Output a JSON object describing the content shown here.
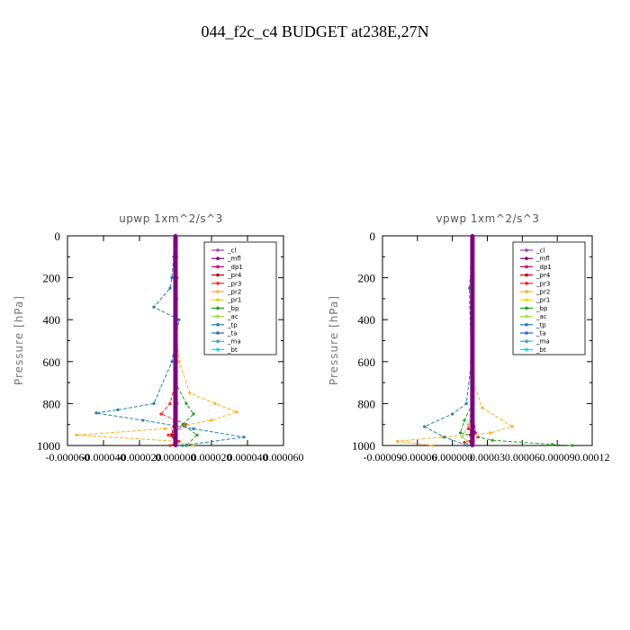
{
  "title": "044_f2c_c4  BUDGET at238E,27N",
  "chart_data": [
    {
      "type": "line",
      "title": "upwp   1xm^2/s^3",
      "ylabel": "Pressure [hPa]",
      "xlim": [
        -6e-05,
        6e-05
      ],
      "ylim": [
        1000,
        0
      ],
      "yticks": [
        0,
        200,
        400,
        600,
        800,
        1000
      ],
      "xtick_labels": [
        "-0.000060",
        "-0.000040",
        "-0.000020",
        "0.000000",
        "0.000020",
        "0.000040",
        "0.000060"
      ],
      "legend": {
        "position": "top-right"
      },
      "series": [
        {
          "name": "_cl",
          "color": "#a040c0",
          "x": [
            0,
            0,
            0
          ],
          "y": [
            0,
            500,
            1000
          ]
        },
        {
          "name": "_mfl",
          "color": "#800080",
          "x": [
            0,
            0,
            0
          ],
          "y": [
            0,
            500,
            1000
          ]
        },
        {
          "name": "_dp1",
          "color": "#d00060",
          "x": [
            0,
            0,
            0,
            0
          ],
          "y": [
            0,
            500,
            900,
            1000
          ]
        },
        {
          "name": "_pr4",
          "color": "#c00000",
          "x": [
            0,
            0,
            0,
            -2e-06,
            0
          ],
          "y": [
            0,
            500,
            800,
            950,
            1000
          ]
        },
        {
          "name": "_pr3",
          "color": "#ff2020",
          "x": [
            0,
            0,
            -3e-06,
            -8e-06,
            6e-06,
            -4e-06,
            2e-06,
            -3e-06
          ],
          "y": [
            0,
            700,
            800,
            850,
            900,
            950,
            980,
            1000
          ]
        },
        {
          "name": "_pr2",
          "color": "#ffb020",
          "x": [
            0,
            1e-06,
            0,
            1e-06,
            0,
            2e-06,
            8e-06,
            2.2e-05,
            3.4e-05,
            2e-05,
            -6e-06,
            -5.5e-05,
            0,
            1e-05
          ],
          "y": [
            0,
            100,
            200,
            300,
            400,
            600,
            750,
            800,
            840,
            880,
            920,
            950,
            980,
            1000
          ]
        },
        {
          "name": "_pr1",
          "color": "#e0e000",
          "x": [
            0,
            0,
            0,
            0
          ],
          "y": [
            0,
            500,
            900,
            1000
          ]
        },
        {
          "name": "_bp",
          "color": "#20a020",
          "x": [
            0,
            0,
            6e-06,
            1e-05,
            4e-06,
            1.2e-05,
            6e-06
          ],
          "y": [
            0,
            700,
            800,
            850,
            900,
            950,
            1000
          ]
        },
        {
          "name": "_ac",
          "color": "#a0e040",
          "x": [
            0,
            0,
            0
          ],
          "y": [
            0,
            500,
            1000
          ]
        },
        {
          "name": "_tp",
          "color": "#2080b0",
          "x": [
            0,
            -1e-06,
            -2e-06,
            -3e-06,
            -1.2e-05,
            2e-06,
            -2e-06,
            -1.2e-05,
            -3.2e-05,
            -4.4e-05,
            -1.8e-05,
            1e-05,
            3.8e-05,
            4e-06
          ],
          "y": [
            0,
            100,
            200,
            250,
            340,
            400,
            600,
            800,
            830,
            845,
            880,
            920,
            960,
            1000
          ]
        },
        {
          "name": "_ta",
          "color": "#3060c0",
          "x": [
            0,
            0,
            0
          ],
          "y": [
            0,
            500,
            1000
          ]
        },
        {
          "name": "_ma",
          "color": "#40a0d0",
          "x": [
            0,
            1e-06,
            0,
            1e-06,
            0
          ],
          "y": [
            0,
            200,
            500,
            800,
            1000
          ]
        },
        {
          "name": "_bt",
          "color": "#00e0e0",
          "x": [
            0,
            0,
            0
          ],
          "y": [
            0,
            500,
            1000
          ]
        }
      ]
    },
    {
      "type": "line",
      "title": "vpwp   1xm^2/s^3",
      "ylabel": "Pressure [hPa]",
      "xlim": [
        -9e-05,
        0.00012
      ],
      "ylim": [
        1000,
        0
      ],
      "yticks": [
        0,
        200,
        400,
        600,
        800,
        1000
      ],
      "xtick_labels": [
        "-0.00009",
        "-0.00006",
        "0.000000",
        "0.00003",
        "0.00006",
        "0.00009",
        "0.00012"
      ],
      "legend": {
        "position": "top-right"
      },
      "series": [
        {
          "name": "_cl",
          "color": "#a040c0",
          "x": [
            0,
            0,
            0
          ],
          "y": [
            0,
            500,
            1000
          ]
        },
        {
          "name": "_mfl",
          "color": "#800080",
          "x": [
            0,
            0,
            0,
            0
          ],
          "y": [
            0,
            500,
            900,
            1000
          ]
        },
        {
          "name": "_dp1",
          "color": "#d00060",
          "x": [
            0,
            0,
            3e-06,
            -2e-06,
            0
          ],
          "y": [
            0,
            800,
            940,
            980,
            1000
          ]
        },
        {
          "name": "_pr4",
          "color": "#c00000",
          "x": [
            0,
            0,
            -2e-06,
            0
          ],
          "y": [
            0,
            800,
            950,
            1000
          ]
        },
        {
          "name": "_pr3",
          "color": "#ff2020",
          "x": [
            0,
            0,
            -4e-06,
            6e-06,
            -8e-06,
            0
          ],
          "y": [
            0,
            850,
            920,
            960,
            985,
            1000
          ]
        },
        {
          "name": "_pr2",
          "color": "#ffb020",
          "x": [
            0,
            1e-06,
            0,
            1e-06,
            1e-05,
            4e-05,
            1.8e-05,
            -3e-05,
            -7.5e-05,
            -4e-05
          ],
          "y": [
            0,
            200,
            500,
            700,
            820,
            910,
            940,
            960,
            980,
            1000
          ]
        },
        {
          "name": "_pr1",
          "color": "#e0e000",
          "x": [
            0,
            0,
            0
          ],
          "y": [
            0,
            500,
            1000
          ]
        },
        {
          "name": "_bp",
          "color": "#20a020",
          "x": [
            0,
            0,
            -8e-06,
            -1.2e-05,
            2e-05,
            8e-05,
            0.0001
          ],
          "y": [
            0,
            800,
            880,
            940,
            975,
            995,
            1000
          ]
        },
        {
          "name": "_ac",
          "color": "#a0e040",
          "x": [
            0,
            0,
            -4e-06,
            -1e-05,
            0
          ],
          "y": [
            0,
            800,
            900,
            960,
            1000
          ]
        },
        {
          "name": "_tp",
          "color": "#2080b0",
          "x": [
            0,
            -1e-06,
            -3e-06,
            -1e-06,
            -6e-06,
            -2e-05,
            -4.8e-05,
            -2.8e-05,
            -5e-06
          ],
          "y": [
            0,
            150,
            250,
            600,
            800,
            850,
            910,
            960,
            1000
          ]
        },
        {
          "name": "_ta",
          "color": "#3060c0",
          "x": [
            0,
            0,
            0
          ],
          "y": [
            0,
            500,
            1000
          ]
        },
        {
          "name": "_ma",
          "color": "#40a0d0",
          "x": [
            0,
            -1e-06,
            0,
            -1e-06,
            0
          ],
          "y": [
            0,
            200,
            500,
            800,
            1000
          ]
        },
        {
          "name": "_bt",
          "color": "#00e0e0",
          "x": [
            0,
            0,
            0
          ],
          "y": [
            0,
            500,
            1000
          ]
        }
      ]
    }
  ]
}
